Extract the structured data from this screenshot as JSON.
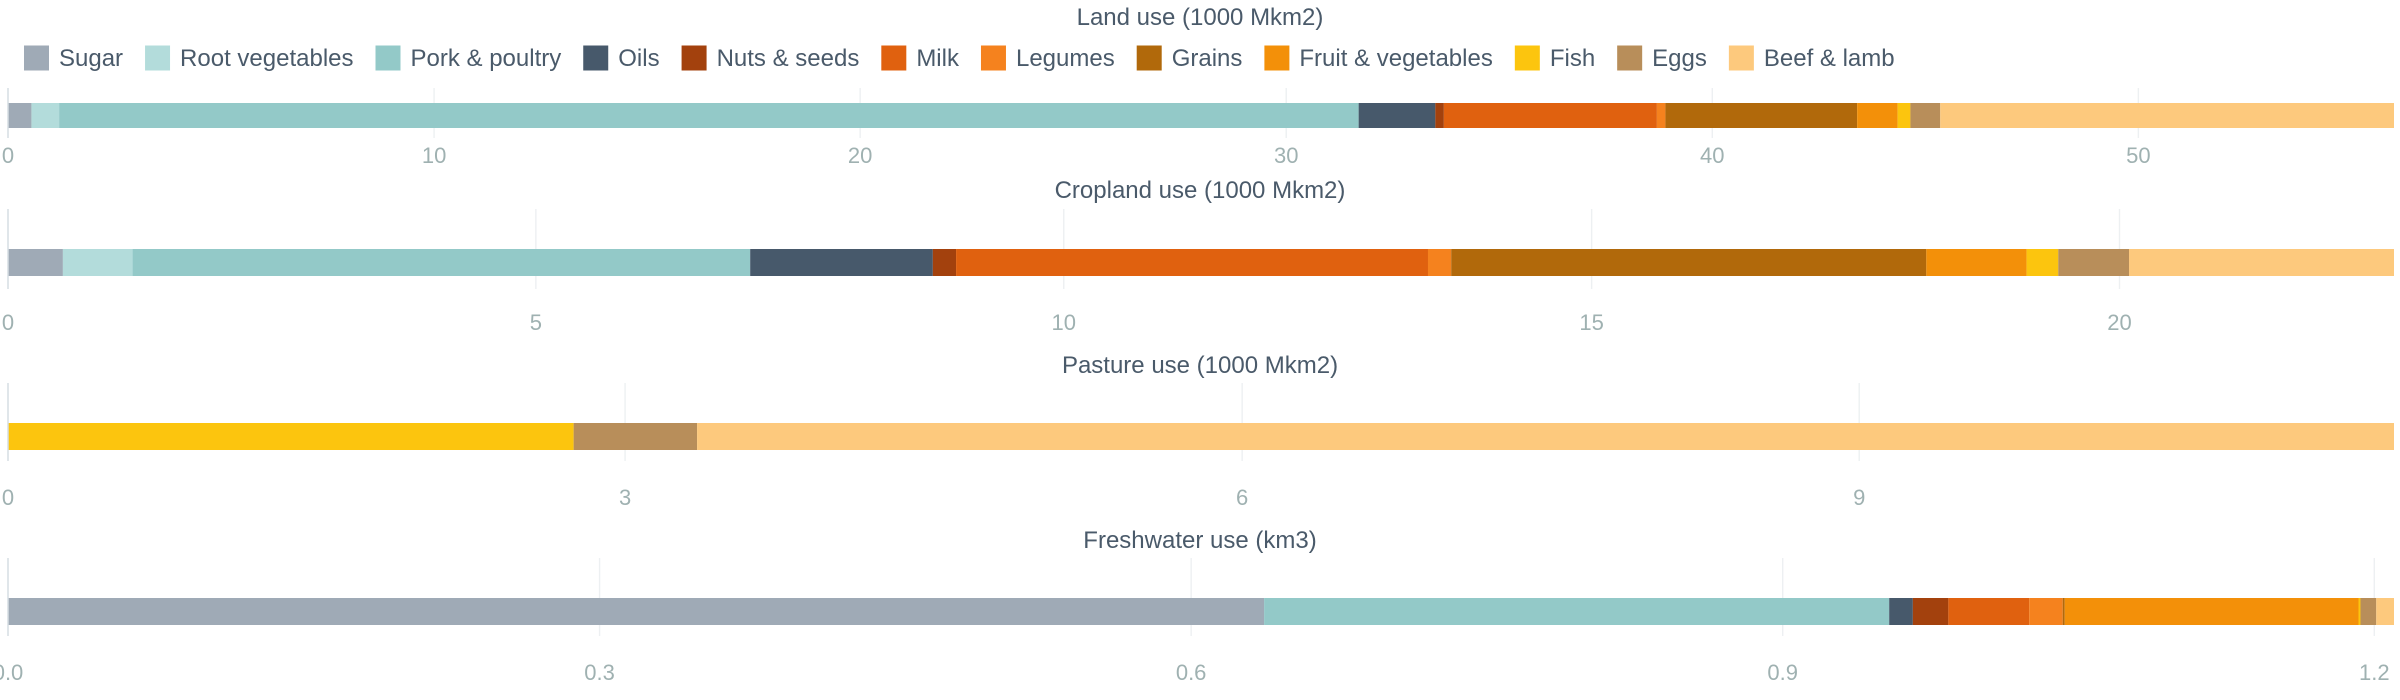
{
  "chart_data": {
    "type": "bar",
    "orientation": "horizontal-stacked",
    "legend": {
      "placement": "top-left",
      "items": [
        {
          "name": "Sugar",
          "color": "#9faab6"
        },
        {
          "name": "Root vegetables",
          "color": "#b3dcdb"
        },
        {
          "name": "Pork & poultry",
          "color": "#93c9c8"
        },
        {
          "name": "Oils",
          "color": "#47596b"
        },
        {
          "name": "Nuts & seeds",
          "color": "#a3410d"
        },
        {
          "name": "Milk",
          "color": "#e0610f"
        },
        {
          "name": "Legumes",
          "color": "#f5821e"
        },
        {
          "name": "Grains",
          "color": "#b1690b"
        },
        {
          "name": "Fruit & vegetables",
          "color": "#f39009"
        },
        {
          "name": "Fish",
          "color": "#fcc50e"
        },
        {
          "name": "Eggs",
          "color": "#b88e5a"
        },
        {
          "name": "Beef & lamb",
          "color": "#fdc97d"
        }
      ]
    },
    "panels": [
      {
        "title": "Land use (1000 Mkm2)",
        "xlim": [
          0,
          56
        ],
        "ticks": [
          0,
          10,
          20,
          30,
          40,
          50
        ],
        "tick_labels": [
          "0",
          "10",
          "20",
          "30",
          "40",
          "50"
        ],
        "grid": true,
        "segments": [
          {
            "name": "Sugar",
            "value": 0.55
          },
          {
            "name": "Root vegetables",
            "value": 0.65
          },
          {
            "name": "Pork & poultry",
            "value": 30.5
          },
          {
            "name": "Oils",
            "value": 1.8
          },
          {
            "name": "Nuts & seeds",
            "value": 0.2
          },
          {
            "name": "Milk",
            "value": 5.0
          },
          {
            "name": "Legumes",
            "value": 0.2
          },
          {
            "name": "Grains",
            "value": 4.5
          },
          {
            "name": "Fruit & vegetables",
            "value": 0.95
          },
          {
            "name": "Fish",
            "value": 0.3
          },
          {
            "name": "Eggs",
            "value": 0.7
          },
          {
            "name": "Beef & lamb",
            "value": 10.65
          }
        ]
      },
      {
        "title": "Cropland use (1000 Mkm2)",
        "xlim": [
          0,
          22.6
        ],
        "ticks": [
          0,
          5,
          10,
          15,
          20
        ],
        "tick_labels": [
          "0",
          "5",
          "10",
          "15",
          "20"
        ],
        "grid": true,
        "segments": [
          {
            "name": "Sugar",
            "value": 0.52
          },
          {
            "name": "Root vegetables",
            "value": 0.66
          },
          {
            "name": "Pork & poultry",
            "value": 5.85
          },
          {
            "name": "Oils",
            "value": 1.73
          },
          {
            "name": "Nuts & seeds",
            "value": 0.22
          },
          {
            "name": "Milk",
            "value": 4.47
          },
          {
            "name": "Legumes",
            "value": 0.22
          },
          {
            "name": "Grains",
            "value": 4.5
          },
          {
            "name": "Fruit & vegetables",
            "value": 0.95
          },
          {
            "name": "Fish",
            "value": 0.3
          },
          {
            "name": "Eggs",
            "value": 0.67
          },
          {
            "name": "Beef & lamb",
            "value": 2.51
          }
        ]
      },
      {
        "title": "Pasture use (1000 Mkm2)",
        "xlim": [
          0,
          11.6
        ],
        "ticks": [
          0,
          3,
          6,
          9
        ],
        "tick_labels": [
          "0",
          "3",
          "6",
          "9"
        ],
        "grid": true,
        "segments": [
          {
            "name": "Fish",
            "value": 2.75
          },
          {
            "name": "Eggs",
            "value": 0.6
          },
          {
            "name": "Beef & lamb",
            "value": 8.25
          }
        ]
      },
      {
        "title": "Freshwater use (km3)",
        "xlim": [
          0,
          1.21
        ],
        "ticks": [
          0,
          0.3,
          0.6,
          0.9,
          1.2
        ],
        "tick_labels": [
          "0.0",
          "0.3",
          "0.6",
          "0.9",
          "1.2"
        ],
        "grid": true,
        "segments": [
          {
            "name": "Sugar",
            "value": 0.637
          },
          {
            "name": "Pork & poultry",
            "value": 0.317
          },
          {
            "name": "Oils",
            "value": 0.012
          },
          {
            "name": "Nuts & seeds",
            "value": 0.018
          },
          {
            "name": "Milk",
            "value": 0.041
          },
          {
            "name": "Legumes",
            "value": 0.017
          },
          {
            "name": "Grains",
            "value": 0.001
          },
          {
            "name": "Fruit & vegetables",
            "value": 0.149
          },
          {
            "name": "Fish",
            "value": 0.001
          },
          {
            "name": "Eggs",
            "value": 0.008
          },
          {
            "name": "Beef & lamb",
            "value": 0.009
          }
        ]
      }
    ]
  }
}
